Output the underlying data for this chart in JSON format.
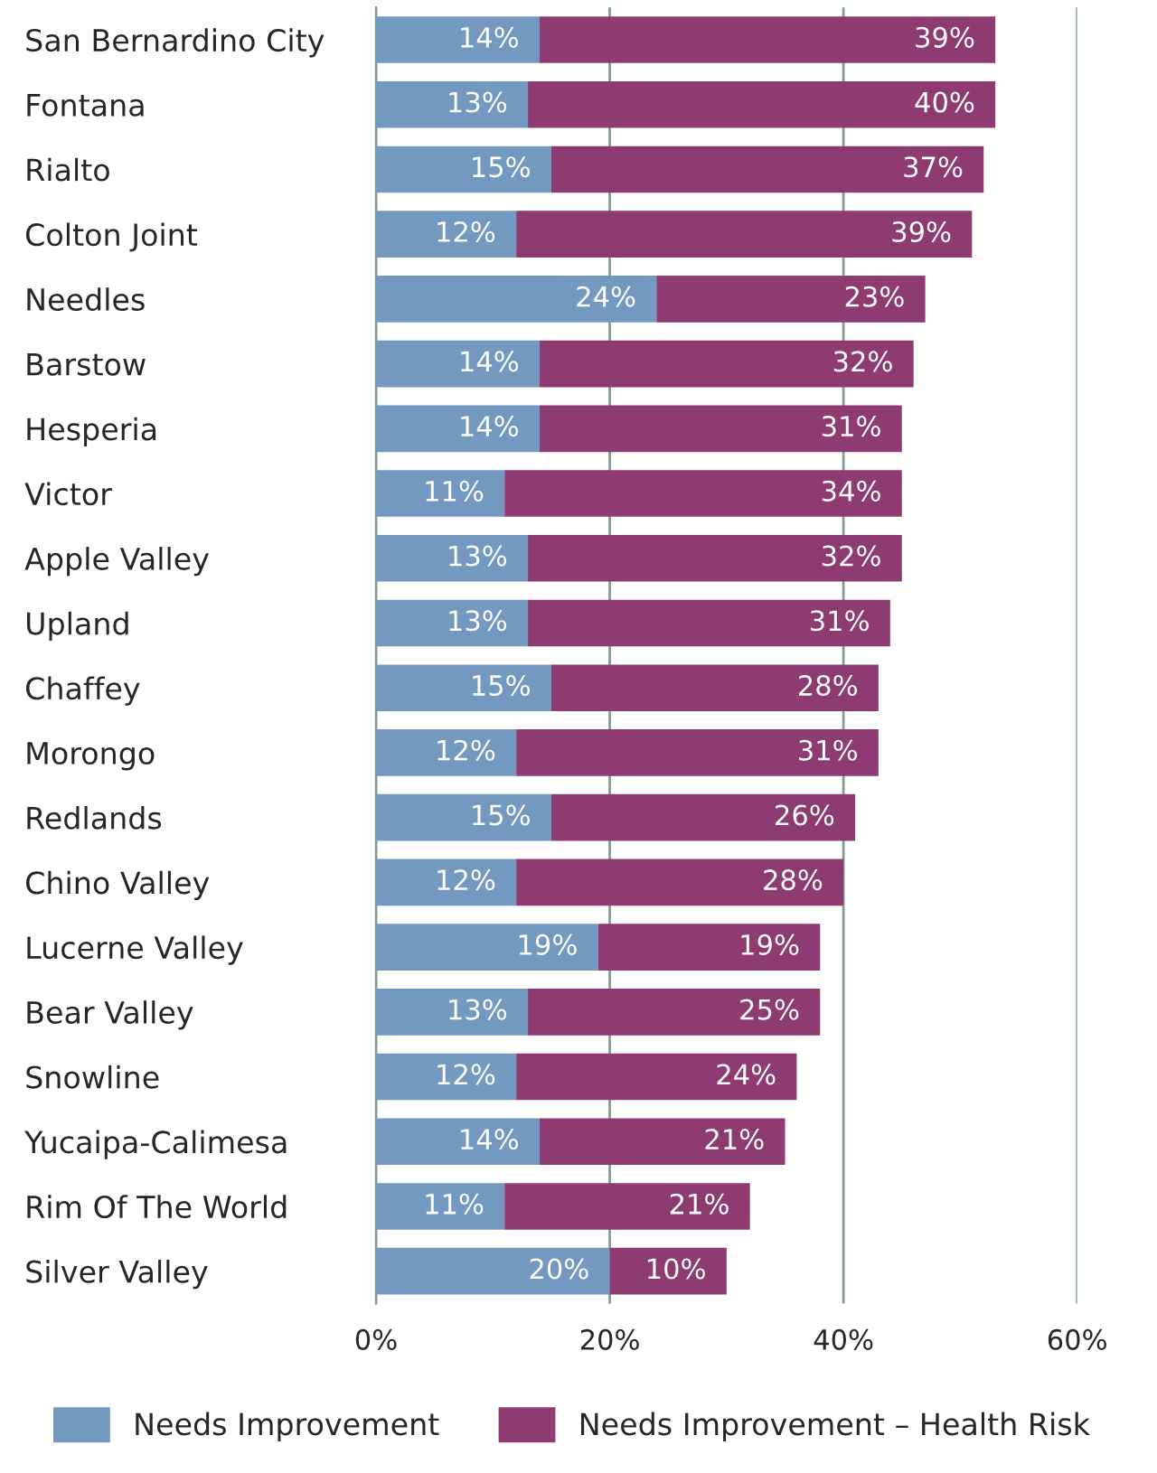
{
  "chart_data": {
    "type": "bar",
    "orientation": "horizontal",
    "stacked": true,
    "categories": [
      "San Bernardino City",
      "Fontana",
      "Rialto",
      "Colton Joint",
      "Needles",
      "Barstow",
      "Hesperia",
      "Victor",
      "Apple Valley",
      "Upland",
      "Chaffey",
      "Morongo",
      "Redlands",
      "Chino Valley",
      "Lucerne Valley",
      "Bear Valley",
      "Snowline",
      "Yucaipa-Calimesa",
      "Rim Of The World",
      "Silver Valley"
    ],
    "series": [
      {
        "name": "Needs Improvement",
        "color": "#7399c0",
        "values": [
          14,
          13,
          15,
          12,
          24,
          14,
          14,
          11,
          13,
          13,
          15,
          12,
          15,
          12,
          19,
          13,
          12,
          14,
          11,
          20
        ],
        "value_labels": [
          "14%",
          "13%",
          "15%",
          "12%",
          "24%",
          "14%",
          "14%",
          "11%",
          "13%",
          "13%",
          "15%",
          "12%",
          "15%",
          "12%",
          "19%",
          "13%",
          "12%",
          "14%",
          "11%",
          "20%"
        ]
      },
      {
        "name": "Needs Improvement – Health Risk",
        "color": "#8e3b72",
        "values": [
          39,
          40,
          37,
          39,
          23,
          32,
          31,
          34,
          32,
          31,
          28,
          31,
          26,
          28,
          19,
          25,
          24,
          21,
          21,
          10
        ],
        "value_labels": [
          "39%",
          "40%",
          "37%",
          "39%",
          "23%",
          "32%",
          "31%",
          "34%",
          "32%",
          "31%",
          "28%",
          "31%",
          "26%",
          "28%",
          "19%",
          "25%",
          "24%",
          "21%",
          "21%",
          "10%"
        ]
      }
    ],
    "xlim": [
      0,
      60
    ],
    "xticks": [
      {
        "value": 0,
        "label": "0%"
      },
      {
        "value": 20,
        "label": "20%"
      },
      {
        "value": 40,
        "label": "40%"
      },
      {
        "value": 60,
        "label": "60%"
      }
    ],
    "grid": "x",
    "legend": "bottom"
  }
}
